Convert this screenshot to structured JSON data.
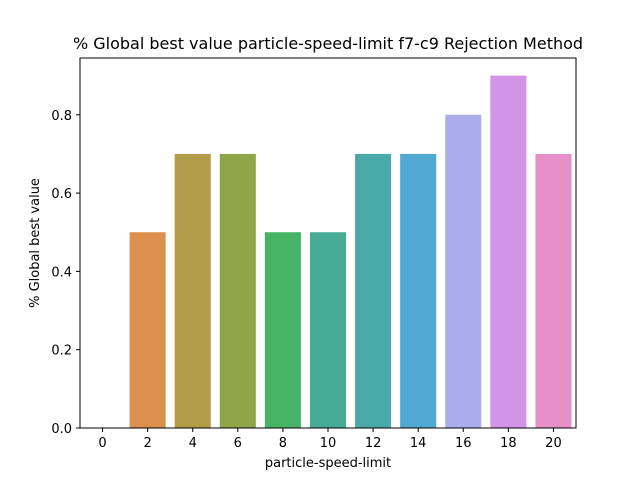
{
  "chart_data": {
    "type": "bar",
    "title": "% Global best value particle-speed-limit f7-c9 Rejection Method",
    "xlabel": "particle-speed-limit",
    "ylabel": "% Global best value",
    "categories": [
      "0",
      "2",
      "4",
      "6",
      "8",
      "10",
      "12",
      "14",
      "16",
      "18",
      "20"
    ],
    "values": [
      0.0,
      0.5,
      0.7,
      0.7,
      0.5,
      0.5,
      0.7,
      0.7,
      0.8,
      0.9,
      0.7
    ],
    "colors": [
      "#e8a0a0",
      "#dd8f4e",
      "#b39c47",
      "#8fa548",
      "#47b365",
      "#48ac95",
      "#4aaaa9",
      "#51a9d3",
      "#a9aeea",
      "#d393e6",
      "#e78fc9"
    ],
    "yticks": [
      "0.0",
      "0.2",
      "0.4",
      "0.6",
      "0.8"
    ],
    "ylim": [
      0,
      0.945
    ],
    "grid": false,
    "legend": "none"
  }
}
